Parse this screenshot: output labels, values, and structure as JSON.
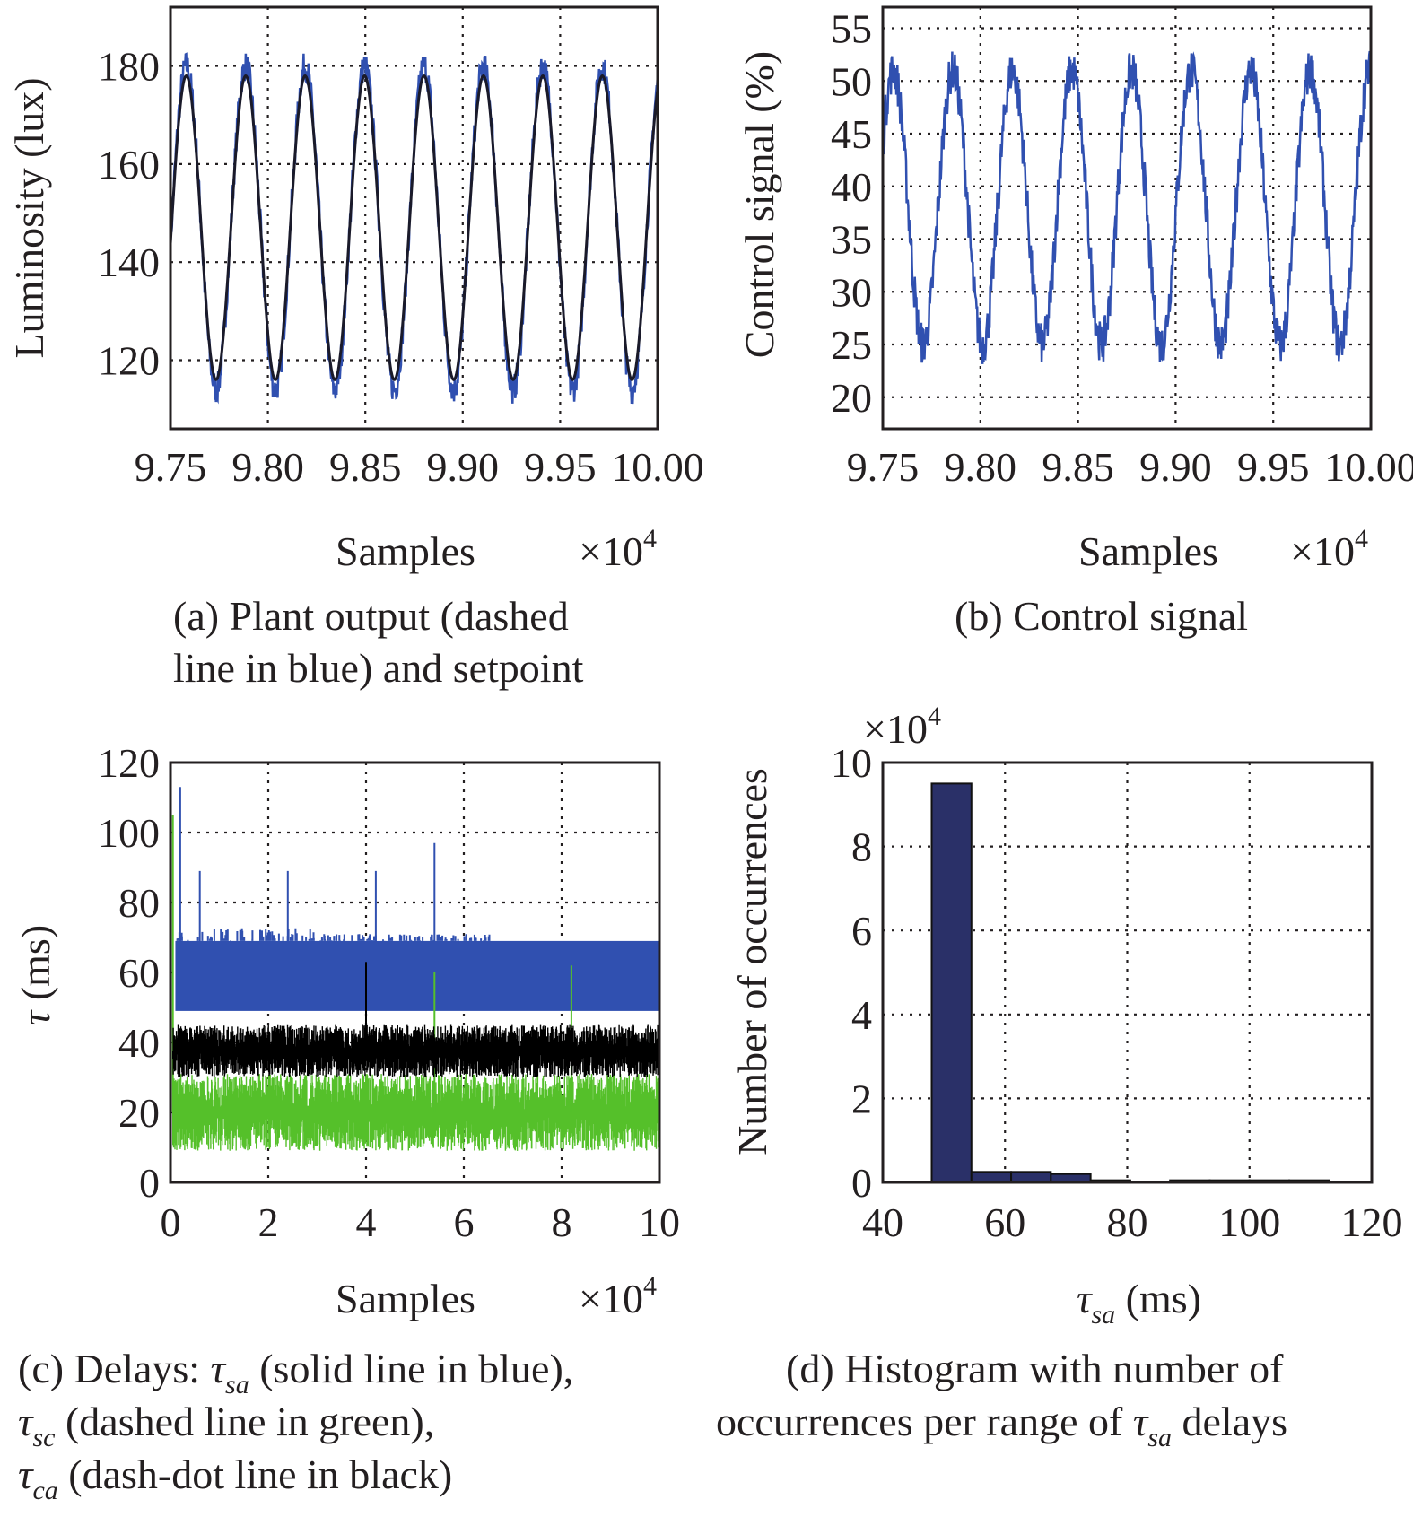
{
  "colors": {
    "blue": "#3050b0",
    "green": "#55c02a",
    "black": "#000000",
    "navy": "#2a3068",
    "setpoint": "#1a1a2a"
  },
  "chart_data": [
    {
      "id": "a",
      "type": "line",
      "caption_line1": "(a) Plant output (dashed",
      "caption_line2": "line in blue) and setpoint",
      "xlabel": "Samples",
      "x_multiplier": "×10",
      "x_multiplier_exp": "4",
      "ylabel": "Luminosity (lux)",
      "xlim": [
        9.75,
        10.0
      ],
      "ylim": [
        106,
        192
      ],
      "xticks": [
        "9.75",
        "9.80",
        "9.85",
        "9.90",
        "9.95",
        "10.00"
      ],
      "yticks": [
        "120",
        "140",
        "160",
        "180"
      ],
      "series": [
        {
          "style": "dashed-blue",
          "x_range": [
            9.75,
            10.0
          ],
          "sine": {
            "center": 147,
            "amplitude": 33,
            "period": 0.0305,
            "phase_x": 9.7505
          },
          "noise": 3
        },
        {
          "style": "solid-black",
          "x_range": [
            9.75,
            10.0
          ],
          "sine": {
            "center": 147,
            "amplitude": 31,
            "period": 0.0305,
            "phase_x": 9.7505
          },
          "noise": 0
        }
      ]
    },
    {
      "id": "b",
      "type": "line",
      "caption_line1": "(b) Control signal",
      "xlabel": "Samples",
      "x_multiplier": "×10",
      "x_multiplier_exp": "4",
      "ylabel": "Control signal (%)",
      "xlim": [
        9.75,
        10.0
      ],
      "ylim": [
        17,
        57
      ],
      "xticks": [
        "9.75",
        "9.80",
        "9.85",
        "9.90",
        "9.95",
        "10.00"
      ],
      "yticks": [
        "20",
        "25",
        "30",
        "35",
        "40",
        "45",
        "50",
        "55"
      ],
      "series": [
        {
          "style": "solid-blue",
          "x_range": [
            9.75,
            10.0
          ],
          "sine": {
            "center": 38,
            "amplitude": 13,
            "period": 0.0305,
            "phase_x": 9.7478
          },
          "noise": 2
        }
      ]
    },
    {
      "id": "c",
      "type": "line",
      "caption_line1_prefix": "(c) Delays: ",
      "caption_line1_suffix": " (solid line in blue),",
      "caption_line2_suffix": " (dashed line in green),",
      "caption_line3_suffix": " (dash-dot line in black)",
      "tau": "τ",
      "sub_sa": "sa",
      "sub_sc": "sc",
      "sub_ca": "ca",
      "xlabel": "Samples",
      "x_multiplier": "×10",
      "x_multiplier_exp": "4",
      "ylabel": "(ms)",
      "xlim": [
        0,
        10
      ],
      "ylim": [
        0,
        120
      ],
      "xticks": [
        "0",
        "2",
        "4",
        "6",
        "8",
        "10"
      ],
      "yticks": [
        "0",
        "20",
        "40",
        "60",
        "80",
        "100",
        "120"
      ],
      "series": [
        {
          "style": "solid-blue",
          "band": [
            49,
            69
          ],
          "spikes": [
            [
              0.2,
              113
            ],
            [
              0.6,
              89
            ],
            [
              2.4,
              89
            ],
            [
              4.2,
              89
            ],
            [
              5.4,
              97
            ]
          ]
        },
        {
          "style": "dash-dot-black",
          "band": [
            30,
            45
          ],
          "spikes": [
            [
              0.1,
              4
            ],
            [
              4.0,
              63
            ]
          ]
        },
        {
          "style": "dashed-green",
          "band": [
            9,
            31
          ],
          "spikes": [
            [
              0.05,
              105
            ],
            [
              5.4,
              60
            ],
            [
              8.2,
              62
            ]
          ]
        }
      ]
    },
    {
      "id": "d",
      "type": "bar",
      "caption_line1": "(d) Histogram with number of",
      "caption_line2_prefix": "occurrences per range of ",
      "caption_line2_suffix": " delays",
      "tau": "τ",
      "sub_sa": "sa",
      "xlabel_suffix": " (ms)",
      "ylabel": "Number of occurrences",
      "y_multiplier": "×10",
      "y_multiplier_exp": "4",
      "xlim": [
        40,
        120
      ],
      "ylim": [
        0,
        10
      ],
      "xticks": [
        "40",
        "60",
        "80",
        "100",
        "120"
      ],
      "yticks": [
        "0",
        "2",
        "4",
        "6",
        "8",
        "10"
      ],
      "bins": [
        {
          "range": [
            48,
            54.5
          ],
          "value": 9.5
        },
        {
          "range": [
            54.5,
            61
          ],
          "value": 0.25
        },
        {
          "range": [
            61,
            67.5
          ],
          "value": 0.25
        },
        {
          "range": [
            67.5,
            74
          ],
          "value": 0.2
        },
        {
          "range": [
            74,
            80.5
          ],
          "value": 0.05
        },
        {
          "range": [
            87,
            93.5
          ],
          "value": 0.05
        },
        {
          "range": [
            93.5,
            100
          ],
          "value": 0.05
        },
        {
          "range": [
            100,
            106.5
          ],
          "value": 0.05
        },
        {
          "range": [
            106.5,
            113
          ],
          "value": 0.05
        }
      ]
    }
  ]
}
